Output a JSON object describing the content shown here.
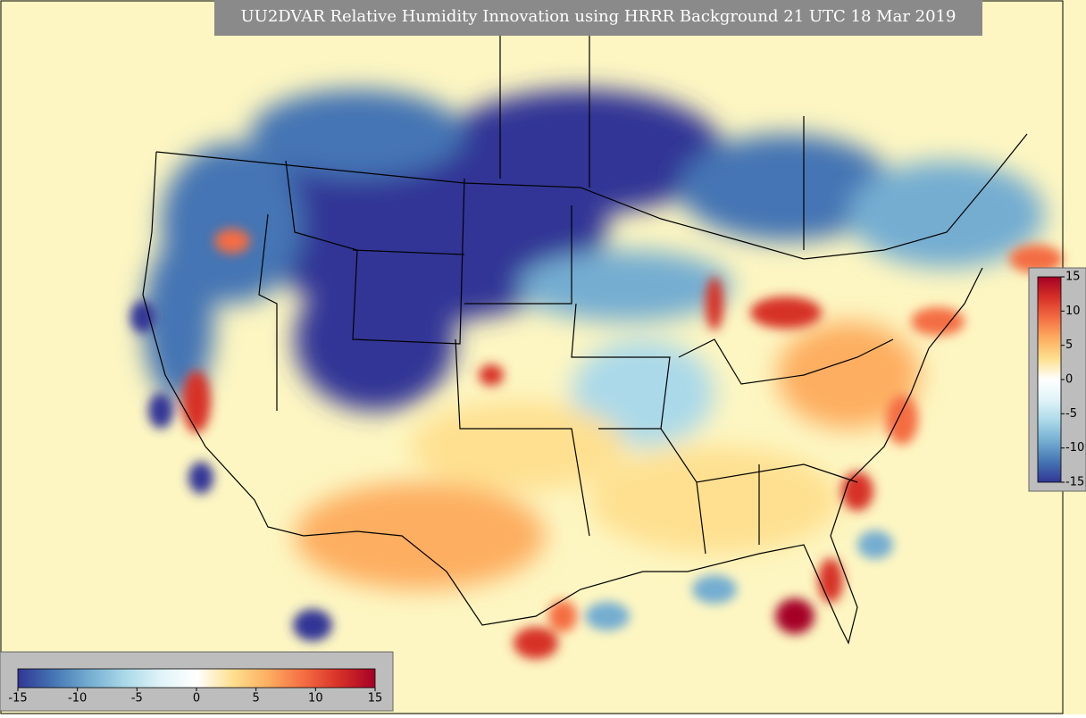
{
  "title": "UU2DVAR Relative Humidity Innovation using HRRR Background 21 UTC 18 Mar 2019",
  "colorbars": [
    {
      "orientation": "horizontal",
      "range": [
        -15,
        15
      ],
      "ticks": [
        -15,
        -10,
        -5,
        0,
        5,
        10,
        15
      ],
      "colors": [
        "#313695",
        "#4575b4",
        "#74add1",
        "#abd9e9",
        "#e0f3f8",
        "#ffffff",
        "#fee090",
        "#fdae61",
        "#f46d43",
        "#d73027",
        "#a50026"
      ]
    },
    {
      "orientation": "vertical",
      "range": [
        -15,
        15
      ],
      "ticks": [
        15,
        10,
        5,
        0,
        -5,
        -10,
        -15
      ],
      "colors": [
        "#313695",
        "#4575b4",
        "#74add1",
        "#abd9e9",
        "#e0f3f8",
        "#ffffff",
        "#fee090",
        "#fdae61",
        "#f46d43",
        "#d73027",
        "#a50026"
      ]
    }
  ]
}
